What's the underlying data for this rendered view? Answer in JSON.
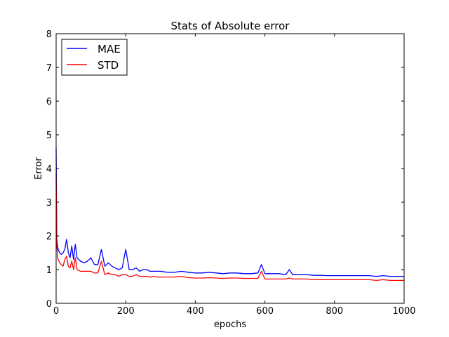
{
  "chart_data": {
    "type": "line",
    "title": "Stats of Absolute error",
    "xlabel": "epochs",
    "ylabel": "Error",
    "xlim": [
      0,
      1000
    ],
    "ylim": [
      0,
      8
    ],
    "xticks": [
      0,
      200,
      400,
      600,
      800,
      1000
    ],
    "yticks": [
      0,
      1,
      2,
      3,
      4,
      5,
      6,
      7,
      8
    ],
    "grid": false,
    "legend_position": "top-left",
    "x": [
      0,
      2,
      4,
      6,
      10,
      15,
      20,
      25,
      30,
      35,
      40,
      45,
      50,
      55,
      60,
      70,
      80,
      90,
      100,
      110,
      120,
      130,
      140,
      150,
      160,
      170,
      180,
      190,
      200,
      210,
      220,
      230,
      240,
      250,
      260,
      270,
      280,
      290,
      300,
      320,
      340,
      360,
      380,
      400,
      420,
      440,
      460,
      480,
      500,
      520,
      540,
      560,
      580,
      590,
      600,
      620,
      640,
      660,
      670,
      680,
      700,
      720,
      740,
      760,
      780,
      800,
      820,
      840,
      860,
      880,
      900,
      920,
      940,
      960,
      980,
      1000
    ],
    "series": [
      {
        "name": "MAE",
        "color": "#0000ff",
        "values": [
          4.6,
          1.9,
          1.7,
          1.6,
          1.5,
          1.45,
          1.5,
          1.6,
          1.9,
          1.5,
          1.35,
          1.7,
          1.3,
          1.75,
          1.35,
          1.25,
          1.2,
          1.25,
          1.35,
          1.15,
          1.15,
          1.6,
          1.1,
          1.2,
          1.1,
          1.05,
          1.0,
          1.05,
          1.6,
          1.0,
          1.0,
          1.05,
          0.95,
          1.0,
          1.0,
          0.95,
          0.95,
          0.95,
          0.95,
          0.92,
          0.92,
          0.95,
          0.92,
          0.9,
          0.9,
          0.92,
          0.9,
          0.88,
          0.9,
          0.9,
          0.88,
          0.88,
          0.9,
          1.15,
          0.88,
          0.88,
          0.88,
          0.85,
          1.0,
          0.85,
          0.85,
          0.85,
          0.83,
          0.83,
          0.82,
          0.82,
          0.82,
          0.82,
          0.82,
          0.82,
          0.82,
          0.8,
          0.82,
          0.8,
          0.8,
          0.8
        ]
      },
      {
        "name": "STD",
        "color": "#ff0000",
        "values": [
          3.8,
          1.7,
          1.4,
          1.3,
          1.2,
          1.15,
          1.1,
          1.3,
          1.4,
          1.1,
          1.05,
          1.25,
          1.0,
          1.35,
          1.0,
          0.95,
          0.95,
          0.95,
          0.95,
          0.9,
          0.9,
          1.25,
          0.85,
          0.9,
          0.85,
          0.85,
          0.8,
          0.85,
          0.85,
          0.8,
          0.8,
          0.85,
          0.8,
          0.8,
          0.8,
          0.78,
          0.8,
          0.78,
          0.78,
          0.78,
          0.78,
          0.8,
          0.76,
          0.75,
          0.75,
          0.76,
          0.75,
          0.74,
          0.75,
          0.75,
          0.74,
          0.74,
          0.74,
          0.95,
          0.72,
          0.72,
          0.72,
          0.72,
          0.75,
          0.72,
          0.72,
          0.72,
          0.7,
          0.7,
          0.7,
          0.7,
          0.7,
          0.7,
          0.7,
          0.7,
          0.7,
          0.68,
          0.7,
          0.68,
          0.68,
          0.68
        ]
      }
    ]
  }
}
